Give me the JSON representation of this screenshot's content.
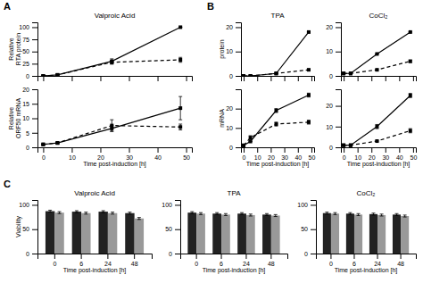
{
  "chart_data": [
    {
      "type": "line",
      "title": "Valproic Acid",
      "y_label": "Relative\nRTA protein",
      "x": [
        0,
        5,
        24,
        48
      ],
      "xlim": [
        -2,
        52
      ],
      "xticks": [
        0,
        10,
        20,
        30,
        40,
        50
      ],
      "ylim": [
        0,
        110
      ],
      "yticks": [
        0,
        25,
        50,
        75,
        100
      ],
      "tick_labels": "y",
      "annotations": [
        "A"
      ],
      "series": [
        {
          "color": "black",
          "marker": "square",
          "line_style": "solid",
          "values": [
            0,
            2,
            30,
            100
          ],
          "errors": [
            0,
            1,
            5,
            0
          ]
        },
        {
          "color": "black",
          "marker": "square",
          "line_style": "dashed",
          "values": [
            0,
            2,
            28,
            33
          ],
          "errors": [
            0,
            1,
            4,
            5
          ]
        }
      ]
    },
    {
      "type": "line",
      "y_label": "Relative\nORF50 mRNA",
      "x_label": "Time post-induction [h]",
      "x": [
        0,
        5,
        24,
        48
      ],
      "xlim": [
        -2,
        52
      ],
      "xticks": [
        0,
        10,
        20,
        30,
        40,
        50
      ],
      "ylim": [
        0,
        20
      ],
      "yticks": [
        0,
        5,
        10,
        15,
        20
      ],
      "series": [
        {
          "color": "black",
          "marker": "square",
          "line_style": "solid",
          "values": [
            1,
            1.5,
            6.5,
            13.5
          ],
          "errors": [
            0,
            0.2,
            1,
            4
          ]
        },
        {
          "color": "black",
          "marker": "square",
          "line_style": "dashed",
          "values": [
            1,
            1.5,
            7.5,
            7
          ],
          "errors": [
            0,
            0.2,
            2,
            1
          ]
        }
      ]
    },
    {
      "type": "line",
      "title": "TPA",
      "y_label": "protein",
      "x": [
        0,
        5,
        24,
        48
      ],
      "xlim": [
        -2,
        52
      ],
      "xticks": [
        0,
        10,
        20,
        30,
        40,
        50
      ],
      "ylim": [
        0,
        22
      ],
      "yticks": [
        0,
        10,
        20
      ],
      "tick_labels": "y",
      "annotations": [
        "B"
      ],
      "series": [
        {
          "color": "black",
          "marker": "square",
          "line_style": "solid",
          "values": [
            0,
            0,
            1,
            18
          ],
          "errors": [
            0,
            0,
            0,
            0
          ]
        },
        {
          "color": "black",
          "marker": "square",
          "line_style": "dashed",
          "values": [
            0,
            0,
            1,
            2.5
          ],
          "errors": [
            0,
            0,
            0.2,
            0.3
          ]
        }
      ]
    },
    {
      "type": "line",
      "title": "CoCl₂",
      "x": [
        0,
        5,
        24,
        48
      ],
      "xlim": [
        -2,
        52
      ],
      "xticks": [
        0,
        10,
        20,
        30,
        40,
        50
      ],
      "ylim": [
        0,
        22
      ],
      "yticks": [
        0,
        10,
        20
      ],
      "tick_labels": "y",
      "series": [
        {
          "color": "black",
          "marker": "square",
          "line_style": "solid",
          "values": [
            1,
            1,
            9,
            18
          ],
          "errors": [
            0,
            0,
            0,
            0
          ]
        },
        {
          "color": "black",
          "marker": "square",
          "line_style": "dashed",
          "values": [
            1,
            1,
            2.5,
            6
          ],
          "errors": [
            0,
            0,
            0.3,
            0.5
          ]
        }
      ]
    },
    {
      "type": "line",
      "y_label": "mRNA",
      "x_label": "Time post-induction [h]",
      "x": [
        0,
        5,
        24,
        48
      ],
      "xlim": [
        -2,
        52
      ],
      "xticks": [
        0,
        10,
        20,
        30,
        40,
        50
      ],
      "ylim": [
        0,
        30
      ],
      "yticks": [
        0,
        10,
        20
      ],
      "series": [
        {
          "color": "black",
          "marker": "square",
          "line_style": "solid",
          "values": [
            1,
            3,
            19,
            27
          ],
          "errors": [
            0,
            0,
            1,
            1
          ]
        },
        {
          "color": "black",
          "marker": "square",
          "line_style": "dashed",
          "values": [
            1,
            5,
            12,
            13
          ],
          "errors": [
            0,
            1,
            1,
            1
          ]
        }
      ]
    },
    {
      "type": "line",
      "x_label": "Time post-induction [h]",
      "x": [
        0,
        5,
        24,
        48
      ],
      "xlim": [
        -2,
        52
      ],
      "xticks": [
        0,
        10,
        20,
        30,
        40,
        50
      ],
      "ylim": [
        0,
        28
      ],
      "yticks": [
        0,
        10,
        20
      ],
      "series": [
        {
          "color": "black",
          "marker": "square",
          "line_style": "solid",
          "values": [
            1,
            1,
            10,
            25
          ],
          "errors": [
            0,
            0,
            1,
            1
          ]
        },
        {
          "color": "black",
          "marker": "square",
          "line_style": "dashed",
          "values": [
            1,
            1,
            3,
            8
          ],
          "errors": [
            0,
            0,
            0.3,
            1
          ]
        }
      ]
    },
    {
      "type": "bar",
      "title": "Valproic Acid",
      "y_label": "Viability",
      "x_label": "Time post-induction [h]",
      "categories": [
        "0",
        "6",
        "24",
        "48"
      ],
      "ylim": [
        0,
        110
      ],
      "yticks": [
        0,
        50,
        100
      ],
      "annotations": [
        "C"
      ],
      "series": [
        {
          "color": "#222222",
          "values": [
            87,
            86,
            86,
            83
          ],
          "errors": [
            2,
            2,
            2,
            2
          ]
        },
        {
          "color": "#999999",
          "values": [
            84,
            83,
            83,
            72
          ],
          "errors": [
            2,
            2,
            2,
            2
          ]
        }
      ]
    },
    {
      "type": "bar",
      "title": "TPA",
      "x_label": "Time post-induction [h]",
      "categories": [
        "0",
        "6",
        "24",
        "48"
      ],
      "ylim": [
        0,
        110
      ],
      "yticks": [
        0,
        50,
        100
      ],
      "series": [
        {
          "color": "#222222",
          "values": [
            84,
            82,
            82,
            80
          ],
          "errors": [
            2,
            2,
            2,
            2
          ]
        },
        {
          "color": "#999999",
          "values": [
            82,
            80,
            79,
            78
          ],
          "errors": [
            2,
            2,
            2,
            2
          ]
        }
      ]
    },
    {
      "type": "bar",
      "title": "CoCl₂",
      "x_label": "Time post-induction [h]",
      "categories": [
        "0",
        "6",
        "24",
        "48"
      ],
      "ylim": [
        0,
        110
      ],
      "yticks": [
        0,
        50,
        100
      ],
      "series": [
        {
          "color": "#222222",
          "values": [
            83,
            82,
            81,
            80
          ],
          "errors": [
            2,
            2,
            2,
            2
          ]
        },
        {
          "color": "#999999",
          "values": [
            82,
            80,
            79,
            77
          ],
          "errors": [
            2,
            2,
            2,
            2
          ]
        }
      ]
    }
  ]
}
